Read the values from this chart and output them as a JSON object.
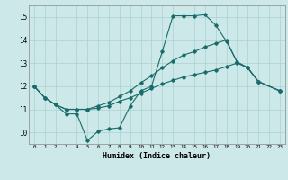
{
  "xlabel": "Humidex (Indice chaleur)",
  "bg_color": "#cce8e8",
  "grid_color": "#aad0d0",
  "line_color": "#1a6b6b",
  "xlim": [
    -0.5,
    23.5
  ],
  "ylim": [
    9.5,
    15.5
  ],
  "yticks": [
    10,
    11,
    12,
    13,
    14,
    15
  ],
  "xtick_labels": [
    "0",
    "1",
    "2",
    "3",
    "4",
    "5",
    "6",
    "7",
    "8",
    "9",
    "10",
    "11",
    "12",
    "13",
    "14",
    "15",
    "16",
    "17",
    "18",
    "19",
    "20",
    "21",
    "22",
    "23"
  ],
  "xtick_pos": [
    0,
    1,
    2,
    3,
    4,
    5,
    6,
    7,
    8,
    9,
    10,
    11,
    12,
    13,
    14,
    15,
    16,
    17,
    18,
    19,
    20,
    21,
    22,
    23
  ],
  "line1_x": [
    0,
    1,
    2,
    3,
    4,
    5,
    6,
    7,
    8,
    9,
    10,
    11,
    12,
    13,
    14,
    15,
    16,
    17,
    18,
    19,
    20,
    21,
    23
  ],
  "line1_y": [
    12.0,
    11.5,
    11.2,
    10.8,
    10.8,
    9.65,
    10.05,
    10.15,
    10.2,
    11.15,
    11.8,
    12.0,
    13.5,
    15.05,
    15.05,
    15.05,
    15.1,
    14.65,
    13.95,
    13.05,
    12.8,
    12.2,
    11.8
  ],
  "line2_x": [
    0,
    1,
    2,
    3,
    4,
    5,
    6,
    7,
    8,
    9,
    10,
    11,
    12,
    13,
    14,
    15,
    16,
    17,
    18,
    19,
    20,
    21,
    23
  ],
  "line2_y": [
    12.0,
    11.5,
    11.2,
    11.0,
    11.0,
    11.0,
    11.15,
    11.3,
    11.55,
    11.8,
    12.15,
    12.45,
    12.8,
    13.1,
    13.35,
    13.5,
    13.7,
    13.85,
    14.0,
    13.05,
    12.8,
    12.2,
    11.8
  ],
  "line3_x": [
    0,
    1,
    2,
    3,
    4,
    5,
    6,
    7,
    8,
    9,
    10,
    11,
    12,
    13,
    14,
    15,
    16,
    17,
    18,
    19,
    20,
    21,
    23
  ],
  "line3_y": [
    12.0,
    11.5,
    11.2,
    11.0,
    11.0,
    11.0,
    11.05,
    11.15,
    11.35,
    11.5,
    11.7,
    11.9,
    12.1,
    12.25,
    12.4,
    12.5,
    12.6,
    12.7,
    12.85,
    13.0,
    12.8,
    12.2,
    11.8
  ]
}
